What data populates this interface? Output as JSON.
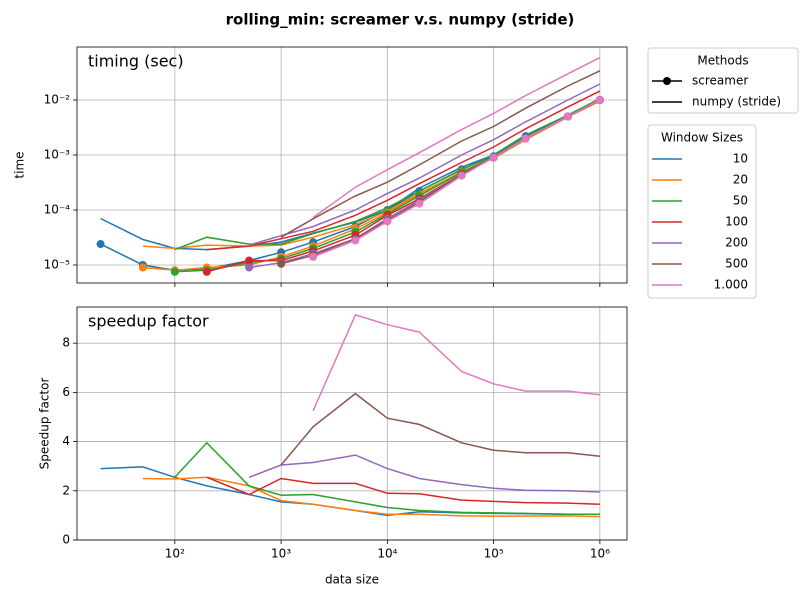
{
  "chart_data": [
    {
      "type": "line",
      "title": "rolling_min:  screamer v.s. numpy (stride)",
      "annotation": "timing (sec)",
      "ylabel": "time",
      "xscale": "log",
      "yscale": "log",
      "grid": true,
      "x": [
        20,
        50,
        100,
        200,
        500,
        1000,
        2000,
        5000,
        10000,
        20000,
        50000,
        100000,
        200000,
        500000,
        1000000
      ],
      "xlim": [
        12,
        1800000
      ],
      "ylim": [
        4.7e-06,
        0.092
      ],
      "yticks": [
        {
          "value": 1e-05,
          "label": "10⁻⁵"
        },
        {
          "value": 0.0001,
          "label": "10⁻⁴"
        },
        {
          "value": 0.001,
          "label": "10⁻³"
        },
        {
          "value": 0.01,
          "label": "10⁻²"
        }
      ],
      "methods_title": "Methods",
      "methods": [
        {
          "name": "screamer",
          "marker": "o"
        },
        {
          "name": "numpy (stride)",
          "marker": "none"
        }
      ],
      "legend_title": "Window Sizes",
      "series": [
        {
          "name": "10",
          "color": "#1f77b4",
          "values": [
            2.4e-05,
            1e-05,
            8e-06,
            8.5e-06,
            1.2e-05,
            1.7e-05,
            2.6e-05,
            5e-05,
            0.0001,
            0.00022,
            0.00055,
            0.00095,
            0.0022,
            0.005,
            0.01
          ],
          "numpy": [
            7e-05,
            2.9e-05,
            2e-05,
            1.9e-05,
            2.2e-05,
            2.6e-05,
            3.8e-05,
            6e-05,
            0.0001,
            0.00025,
            0.0006,
            0.001,
            0.0023,
            0.0053,
            0.0105
          ]
        },
        {
          "name": "20",
          "color": "#ff7f0e",
          "values": [
            null,
            9e-06,
            8e-06,
            9e-06,
            1e-05,
            1.4e-05,
            2.2e-05,
            4.5e-05,
            9e-05,
            0.00019,
            0.0005,
            0.0009,
            0.002,
            0.005,
            0.01
          ],
          "numpy": [
            null,
            2.2e-05,
            2e-05,
            2.3e-05,
            2.2e-05,
            2.3e-05,
            3.2e-05,
            5.4e-05,
            9.5e-05,
            0.0002,
            0.00049,
            0.00087,
            0.0019,
            0.0049,
            0.0095
          ]
        },
        {
          "name": "50",
          "color": "#2ca02c",
          "values": [
            null,
            null,
            7.5e-06,
            8e-06,
            1.1e-05,
            1.3e-05,
            2e-05,
            4e-05,
            8.5e-05,
            0.00018,
            0.00048,
            0.0009,
            0.002,
            0.005,
            0.01
          ],
          "numpy": [
            null,
            null,
            1.9e-05,
            3.2e-05,
            2.4e-05,
            2.4e-05,
            3.7e-05,
            6.2e-05,
            0.00011,
            0.00022,
            0.00054,
            0.001,
            0.0022,
            0.0053,
            0.0105
          ]
        },
        {
          "name": "100",
          "color": "#d62728",
          "values": [
            null,
            null,
            null,
            7.5e-06,
            1.2e-05,
            1.2e-05,
            1.8e-05,
            3.5e-05,
            8e-05,
            0.00016,
            0.00045,
            0.0009,
            0.002,
            0.005,
            0.01
          ],
          "numpy": [
            null,
            null,
            null,
            1.9e-05,
            2.2e-05,
            3e-05,
            4.1e-05,
            8e-05,
            0.00015,
            0.0003,
            0.00073,
            0.0014,
            0.003,
            0.0075,
            0.0145
          ]
        },
        {
          "name": "200",
          "color": "#9467bd",
          "values": [
            null,
            null,
            null,
            null,
            9e-06,
            1.1e-05,
            1.6e-05,
            3e-05,
            7e-05,
            0.00015,
            0.00045,
            0.0009,
            0.002,
            0.005,
            0.01
          ],
          "numpy": [
            null,
            null,
            null,
            null,
            2.3e-05,
            3.4e-05,
            5e-05,
            0.0001,
            0.0002,
            0.00038,
            0.001,
            0.0019,
            0.004,
            0.01,
            0.0195
          ]
        },
        {
          "name": "500",
          "color": "#8c564b",
          "values": [
            null,
            null,
            null,
            null,
            null,
            1.05e-05,
            1.5e-05,
            3e-05,
            6.5e-05,
            0.00014,
            0.00045,
            0.0009,
            0.002,
            0.005,
            0.01
          ],
          "numpy": [
            null,
            null,
            null,
            null,
            null,
            3.2e-05,
            6.9e-05,
            0.00018,
            0.00032,
            0.00066,
            0.0018,
            0.0033,
            0.0071,
            0.018,
            0.034
          ]
        },
        {
          "name": "1.000",
          "color": "#e377c2",
          "values": [
            null,
            null,
            null,
            null,
            null,
            null,
            1.4e-05,
            2.8e-05,
            6.2e-05,
            0.00013,
            0.00042,
            0.0009,
            0.002,
            0.005,
            0.01
          ],
          "numpy": [
            null,
            null,
            null,
            null,
            null,
            null,
            7.3e-05,
            0.00026,
            0.00054,
            0.0011,
            0.0029,
            0.0057,
            0.012,
            0.03,
            0.059
          ]
        }
      ]
    },
    {
      "type": "line",
      "annotation": "speedup factor",
      "ylabel": "Speedup factor",
      "xlabel": "data size",
      "xscale": "log",
      "grid": true,
      "x": [
        20,
        50,
        100,
        200,
        500,
        1000,
        2000,
        5000,
        10000,
        20000,
        50000,
        100000,
        200000,
        500000,
        1000000
      ],
      "xlim": [
        12,
        1800000
      ],
      "xticks": [
        {
          "value": 100,
          "label": "10²"
        },
        {
          "value": 1000,
          "label": "10³"
        },
        {
          "value": 10000,
          "label": "10⁴"
        },
        {
          "value": 100000,
          "label": "10⁵"
        },
        {
          "value": 1000000,
          "label": "10⁶"
        }
      ],
      "ylim": [
        0,
        9.47
      ],
      "yticks": [
        0,
        2,
        4,
        6,
        8
      ],
      "series": [
        {
          "color": "#1f77b4",
          "values": [
            2.9,
            2.97,
            2.55,
            2.2,
            1.85,
            1.55,
            1.45,
            1.2,
            1.0,
            1.15,
            1.1,
            1.08,
            1.07,
            1.05,
            1.05
          ]
        },
        {
          "color": "#ff7f0e",
          "values": [
            null,
            2.5,
            2.48,
            2.55,
            2.2,
            1.6,
            1.45,
            1.2,
            1.05,
            1.05,
            0.98,
            0.97,
            0.97,
            0.98,
            0.95
          ]
        },
        {
          "color": "#2ca02c",
          "values": [
            null,
            null,
            2.55,
            3.95,
            2.2,
            1.82,
            1.85,
            1.55,
            1.32,
            1.2,
            1.12,
            1.1,
            1.08,
            1.05,
            1.05
          ]
        },
        {
          "color": "#d62728",
          "values": [
            null,
            null,
            null,
            2.55,
            1.85,
            2.5,
            2.3,
            2.3,
            1.9,
            1.88,
            1.62,
            1.57,
            1.52,
            1.5,
            1.45
          ]
        },
        {
          "color": "#9467bd",
          "values": [
            null,
            null,
            null,
            null,
            2.55,
            3.05,
            3.15,
            3.45,
            2.9,
            2.5,
            2.25,
            2.1,
            2.02,
            2.0,
            1.95
          ]
        },
        {
          "color": "#8c564b",
          "values": [
            null,
            null,
            null,
            null,
            null,
            3.05,
            4.6,
            5.95,
            4.95,
            4.7,
            3.95,
            3.65,
            3.55,
            3.55,
            3.4
          ]
        },
        {
          "color": "#e377c2",
          "values": [
            null,
            null,
            null,
            null,
            null,
            null,
            5.25,
            9.15,
            8.75,
            8.45,
            6.85,
            6.35,
            6.05,
            6.05,
            5.9
          ]
        }
      ]
    }
  ]
}
